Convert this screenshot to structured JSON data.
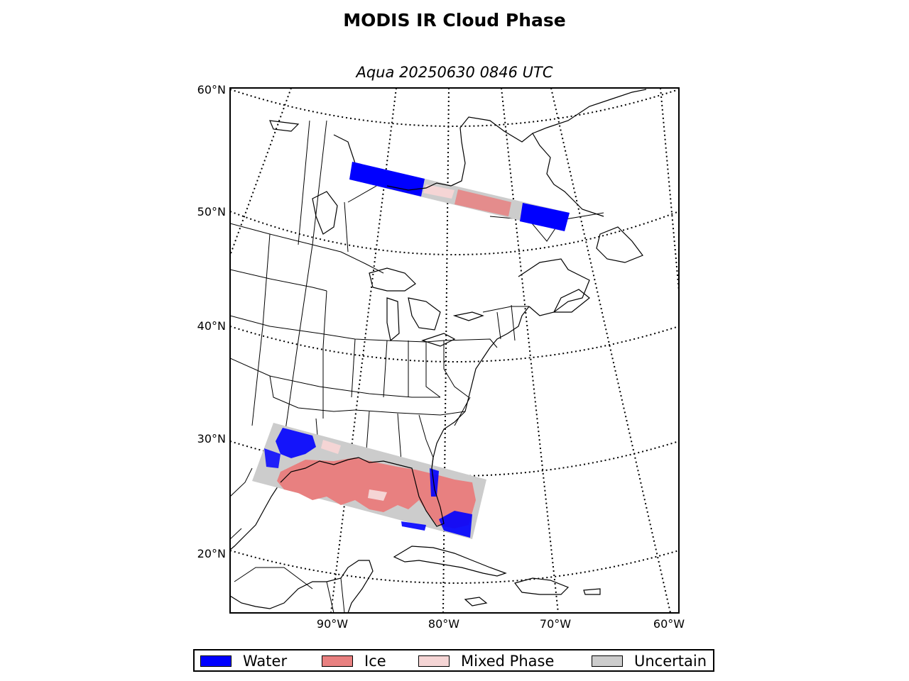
{
  "title": "MODIS IR Cloud Phase",
  "subtitle": "Aqua 20250630 0846 UTC",
  "latitude_labels": [
    "60°N",
    "50°N",
    "40°N",
    "30°N",
    "20°N"
  ],
  "longitude_labels": [
    "90°W",
    "80°W",
    "70°W",
    "60°W"
  ],
  "legend": [
    {
      "label": "Water",
      "color": "#0000ff"
    },
    {
      "label": "Ice",
      "color": "#e88080"
    },
    {
      "label": "Mixed Phase",
      "color": "#f5d5d5"
    },
    {
      "label": "Uncertain",
      "color": "#cccccc"
    }
  ],
  "colors": {
    "water": "#0000ff",
    "ice": "#e88080",
    "mixed": "#f5d5d5",
    "uncertain": "#cccccc"
  }
}
